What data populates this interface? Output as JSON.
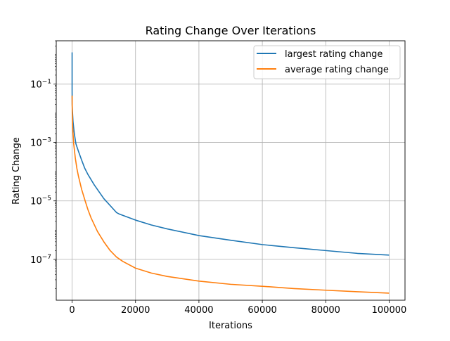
{
  "chart_data": {
    "type": "line",
    "title": "Rating Change Over Iterations",
    "xlabel": "Iterations",
    "ylabel": "Rating Change",
    "xlim": [
      -5000,
      105000
    ],
    "ylim": [
      4e-09,
      3
    ],
    "yscale": "log",
    "grid": true,
    "legend_position": "top-right",
    "xticks": [
      0,
      20000,
      40000,
      60000,
      80000,
      100000
    ],
    "xtick_labels": [
      "0",
      "20000",
      "40000",
      "60000",
      "80000",
      "100000"
    ],
    "yticks": [
      0.1,
      0.001,
      1e-05,
      1e-07
    ],
    "ytick_labels": [
      {
        "base": "10",
        "exp": "−1"
      },
      {
        "base": "10",
        "exp": "−3"
      },
      {
        "base": "10",
        "exp": "−5"
      },
      {
        "base": "10",
        "exp": "−7"
      }
    ],
    "series": [
      {
        "name": "largest rating change",
        "color": "#1f77b4",
        "x": [
          1,
          1,
          5,
          20,
          100,
          300,
          700,
          1200,
          2000,
          3000,
          4000,
          5000,
          7000,
          10000,
          14000,
          15000,
          20000,
          25000,
          30000,
          40000,
          50000,
          60000,
          70000,
          80000,
          90000,
          100000
        ],
        "y": [
          1.2,
          0.06,
          0.05,
          0.02,
          0.012,
          0.005,
          0.002,
          0.0009,
          0.0005,
          0.00025,
          0.00013,
          8e-05,
          3.5e-05,
          1.2e-05,
          4e-06,
          3.5e-06,
          2.2e-06,
          1.5e-06,
          1.1e-06,
          6.5e-07,
          4.5e-07,
          3.2e-07,
          2.5e-07,
          2e-07,
          1.6e-07,
          1.4e-07
        ]
      },
      {
        "name": "average rating change",
        "color": "#ff7f0e",
        "x": [
          1,
          50,
          200,
          500,
          1000,
          1500,
          2000,
          3000,
          4000,
          5000,
          6000,
          8000,
          10000,
          12000,
          14000,
          16000,
          20000,
          25000,
          30000,
          40000,
          50000,
          60000,
          70000,
          80000,
          90000,
          100000
        ],
        "y": [
          0.04,
          0.01,
          0.003,
          0.0009,
          0.0003,
          0.00013,
          7e-05,
          2.5e-05,
          1.1e-05,
          5e-06,
          2.6e-06,
          9e-07,
          4e-07,
          2e-07,
          1.2e-07,
          8.5e-08,
          5e-08,
          3.4e-08,
          2.6e-08,
          1.8e-08,
          1.4e-08,
          1.2e-08,
          1e-08,
          8.8e-09,
          7.8e-09,
          7e-09
        ]
      }
    ]
  }
}
